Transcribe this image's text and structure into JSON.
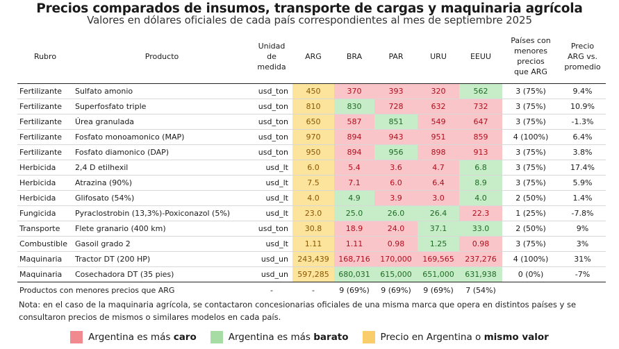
{
  "title": "Precios comparados de insumos, transporte de cargas y maquinaria agrícola",
  "subtitle": "Valores en dólares oficiales de cada país correspondientes al mes de septiembre 2025",
  "headers": {
    "rubro": "Rubro",
    "producto": "Producto",
    "unidad_1": "Unidad",
    "unidad_2": "de",
    "unidad_3": "medida",
    "arg": "ARG",
    "bra": "BRA",
    "par": "PAR",
    "uru": "URU",
    "eeuu": "EEUU",
    "paises_1": "Países con",
    "paises_2": "menores",
    "paises_3": "precios",
    "paises_4": "que ARG",
    "precio_1": "Precio",
    "precio_2": "ARG vs.",
    "precio_3": "promedio"
  },
  "colors": {
    "caro_bg": "#f9c5c9",
    "barato_bg": "#c7ecc8",
    "mismo_bg": "#fde49c",
    "legend_caro": "#f08a8e",
    "legend_barato": "#a8dca5",
    "legend_mismo": "#f8cd6a"
  },
  "rows": [
    {
      "rubro": "Fertilizante",
      "producto": "Sulfato amonio",
      "unidad": "usd_ton",
      "arg": "450",
      "bra": "370",
      "par": "393",
      "uru": "320",
      "eeuu": "562",
      "bra_c": "red",
      "par_c": "red",
      "uru_c": "red",
      "eeuu_c": "green",
      "paises": "3 (75%)",
      "vs": "9.4%"
    },
    {
      "rubro": "Fertilizante",
      "producto": "Superfosfato triple",
      "unidad": "usd_ton",
      "arg": "810",
      "bra": "830",
      "par": "728",
      "uru": "632",
      "eeuu": "732",
      "bra_c": "green",
      "par_c": "red",
      "uru_c": "red",
      "eeuu_c": "red",
      "paises": "3 (75%)",
      "vs": "10.9%"
    },
    {
      "rubro": "Fertilizante",
      "producto": "Úrea granulada",
      "unidad": "usd_ton",
      "arg": "650",
      "bra": "587",
      "par": "851",
      "uru": "549",
      "eeuu": "647",
      "bra_c": "red",
      "par_c": "green",
      "uru_c": "red",
      "eeuu_c": "red",
      "paises": "3 (75%)",
      "vs": "-1.3%"
    },
    {
      "rubro": "Fertilizante",
      "producto": "Fosfato monoamonico (MAP)",
      "unidad": "usd_ton",
      "arg": "970",
      "bra": "894",
      "par": "943",
      "uru": "951",
      "eeuu": "859",
      "bra_c": "red",
      "par_c": "red",
      "uru_c": "red",
      "eeuu_c": "red",
      "paises": "4 (100%)",
      "vs": "6.4%"
    },
    {
      "rubro": "Fertilizante",
      "producto": "Fosfato diamonico (DAP)",
      "unidad": "usd_ton",
      "arg": "950",
      "bra": "894",
      "par": "956",
      "uru": "898",
      "eeuu": "913",
      "bra_c": "red",
      "par_c": "green",
      "uru_c": "red",
      "eeuu_c": "red",
      "paises": "3 (75%)",
      "vs": "3.8%"
    },
    {
      "rubro": "Herbicida",
      "producto": "2,4 D etilhexil",
      "unidad": "usd_lt",
      "arg": "6.0",
      "bra": "5.4",
      "par": "3.6",
      "uru": "4.7",
      "eeuu": "6.8",
      "bra_c": "red",
      "par_c": "red",
      "uru_c": "red",
      "eeuu_c": "green",
      "paises": "3 (75%)",
      "vs": "17.4%"
    },
    {
      "rubro": "Herbicida",
      "producto": "Atrazina (90%)",
      "unidad": "usd_lt",
      "arg": "7.5",
      "bra": "7.1",
      "par": "6.0",
      "uru": "6.4",
      "eeuu": "8.9",
      "bra_c": "red",
      "par_c": "red",
      "uru_c": "red",
      "eeuu_c": "green",
      "paises": "3 (75%)",
      "vs": "5.9%"
    },
    {
      "rubro": "Herbicida",
      "producto": "Glifosato (54%)",
      "unidad": "usd_lt",
      "arg": "4.0",
      "bra": "4.9",
      "par": "3.9",
      "uru": "3.0",
      "eeuu": "4.0",
      "bra_c": "green",
      "par_c": "red",
      "uru_c": "red",
      "eeuu_c": "green",
      "paises": "2 (50%)",
      "vs": "1.4%"
    },
    {
      "rubro": "Fungicida",
      "producto": "Pyraclostrobin (13,3%)-Poxiconazol (5%)",
      "unidad": "usd_lt",
      "arg": "23.0",
      "bra": "25.0",
      "par": "26.0",
      "uru": "26.4",
      "eeuu": "22.3",
      "bra_c": "green",
      "par_c": "green",
      "uru_c": "green",
      "eeuu_c": "red",
      "paises": "1 (25%)",
      "vs": "-7.8%"
    },
    {
      "rubro": "Transporte",
      "producto": "Flete granario (400 km)",
      "unidad": "usd_ton",
      "arg": "30.8",
      "bra": "18.9",
      "par": "24.0",
      "uru": "37.1",
      "eeuu": "33.0",
      "bra_c": "red",
      "par_c": "red",
      "uru_c": "green",
      "eeuu_c": "green",
      "paises": "2 (50%)",
      "vs": "9%"
    },
    {
      "rubro": "Combustible",
      "producto": "Gasoil grado 2",
      "unidad": "usd_lt",
      "arg": "1.11",
      "bra": "1.11",
      "par": "0.98",
      "uru": "1.25",
      "eeuu": "0.98",
      "bra_c": "red",
      "par_c": "red",
      "uru_c": "green",
      "eeuu_c": "red",
      "paises": "3 (75%)",
      "vs": "3%"
    },
    {
      "rubro": "Maquinaria",
      "producto": "Tractor DT (200 HP)",
      "unidad": "usd_un",
      "arg": "243,439",
      "bra": "168,716",
      "par": "170,000",
      "uru": "169,565",
      "eeuu": "237,276",
      "bra_c": "red",
      "par_c": "red",
      "uru_c": "red",
      "eeuu_c": "red",
      "paises": "4 (100%)",
      "vs": "31%"
    },
    {
      "rubro": "Maquinaria",
      "producto": "Cosechadora DT (35 pies)",
      "unidad": "usd_un",
      "arg": "597,285",
      "bra": "680,031",
      "par": "615,000",
      "uru": "651,000",
      "eeuu": "631,938",
      "bra_c": "green",
      "par_c": "green",
      "uru_c": "green",
      "eeuu_c": "green",
      "paises": "0 (0%)",
      "vs": "-7%"
    }
  ],
  "summary": {
    "label": "Productos con menores precios que ARG",
    "unidad": "-",
    "arg": "-",
    "bra": "9 (69%)",
    "par": "9 (69%)",
    "uru": "9 (69%)",
    "eeuu": "7 (54%)"
  },
  "note": "Nota: en el caso de la maquinaria agrícola, se contactaron concesionarias oficiales de una misma marca que opera en distintos países y se consultaron precios de mismos o similares modelos en cada país.",
  "legend": {
    "caro_prefix": "Argentina es más ",
    "caro_bold": "caro",
    "barato_prefix": "Argentina es más ",
    "barato_bold": "barato",
    "mismo_prefix": "Precio en Argentina o ",
    "mismo_bold": "mismo valor"
  }
}
